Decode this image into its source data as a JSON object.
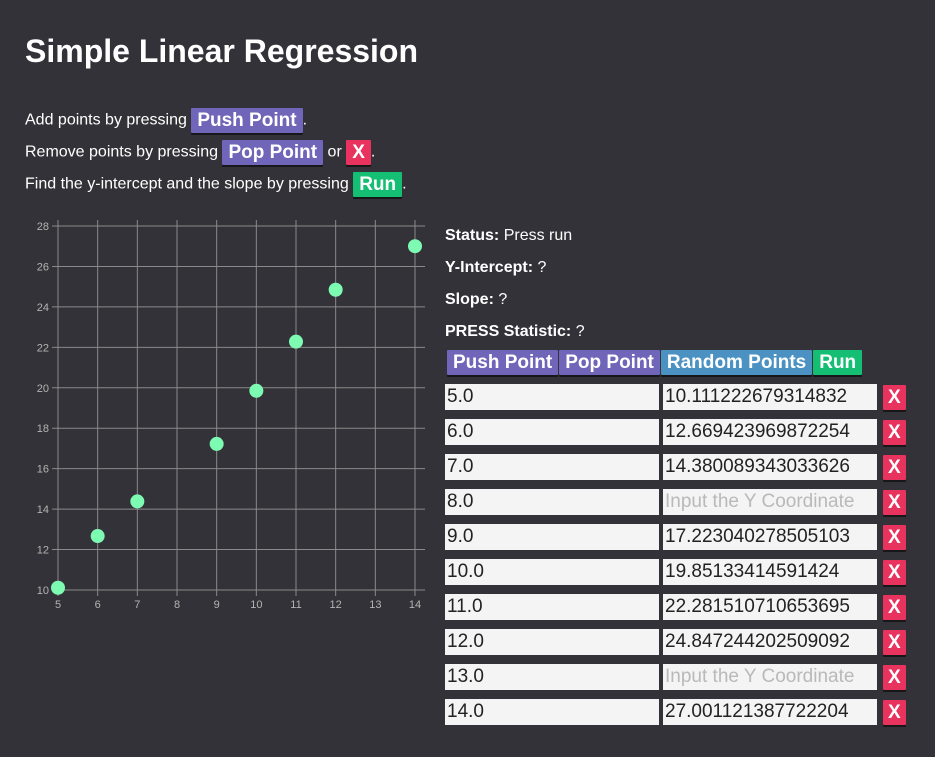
{
  "title": "Simple Linear Regression",
  "instructions": {
    "line1_text": "Add points by pressing",
    "line1_button": "Push Point",
    "line1_end": ".",
    "line2_text": "Remove points by pressing",
    "line2_button1": "Pop Point",
    "line2_or": "or",
    "line2_button2": "X",
    "line2_end": ".",
    "line3_text": "Find the y-intercept and the slope by pressing",
    "line3_button": "Run",
    "line3_end": "."
  },
  "status": {
    "label": "Status:",
    "value": "Press run"
  },
  "intercept": {
    "label": "Y-Intercept:",
    "value": "?"
  },
  "slope": {
    "label": "Slope:",
    "value": "?"
  },
  "press": {
    "label": "PRESS Statistic:",
    "value": "?"
  },
  "toolbar": {
    "push_label": "Push Point",
    "pop_label": "Pop Point",
    "random_label": "Random Points",
    "run_label": "Run"
  },
  "remove_label": "X",
  "y_placeholder": "Input the Y Coordinate",
  "rows": [
    {
      "x": "5.0",
      "y": "10.111222679314832"
    },
    {
      "x": "6.0",
      "y": "12.669423969872254"
    },
    {
      "x": "7.0",
      "y": "14.380089343033626"
    },
    {
      "x": "8.0",
      "y": ""
    },
    {
      "x": "9.0",
      "y": "17.223040278505103"
    },
    {
      "x": "10.0",
      "y": "19.85133414591424"
    },
    {
      "x": "11.0",
      "y": "22.281510710653695"
    },
    {
      "x": "12.0",
      "y": "24.847244202509092"
    },
    {
      "x": "13.0",
      "y": ""
    },
    {
      "x": "14.0",
      "y": "27.001121387722204"
    }
  ],
  "colors": {
    "background": "#333238",
    "purple_button": "#6f66b9",
    "red_button": "#e8335f",
    "green_button": "#14be72",
    "blue_button": "#4b92c3",
    "point": "#7dfbb3",
    "grid": "#8a8a8a"
  },
  "chart_data": {
    "type": "scatter",
    "x": [
      5,
      6,
      7,
      9,
      10,
      11,
      12,
      14
    ],
    "y": [
      10.111222679314832,
      12.669423969872254,
      14.380089343033626,
      17.223040278505103,
      19.85133414591424,
      22.281510710653695,
      24.847244202509092,
      27.001121387722204
    ],
    "xlim": [
      5,
      14
    ],
    "ylim": [
      10,
      28
    ],
    "xticks": [
      "5",
      "6",
      "7",
      "8",
      "9",
      "10",
      "11",
      "12",
      "13",
      "14"
    ],
    "yticks": [
      "10",
      "12",
      "14",
      "16",
      "18",
      "20",
      "22",
      "24",
      "26",
      "28"
    ],
    "grid": true
  }
}
